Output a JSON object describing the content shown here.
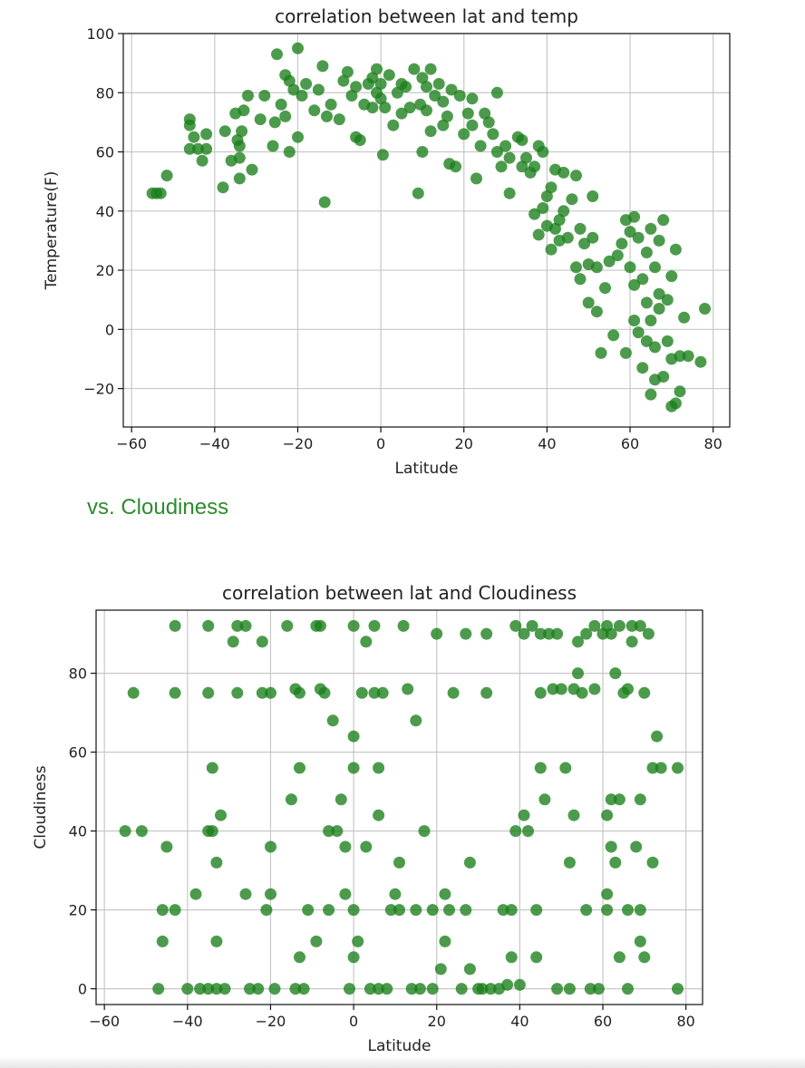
{
  "section_heading": "vs. Cloudiness",
  "colors": {
    "marker": "#1a7f1a",
    "grid": "#c8c8c8",
    "heading": "#2e8b2e"
  },
  "chart_data": [
    {
      "type": "scatter",
      "title": "correlation between lat and temp",
      "xlabel": "Latitude",
      "ylabel": "Temperature(F)",
      "xlim": [
        -62,
        84
      ],
      "ylim": [
        -33,
        100
      ],
      "xticks": [
        -60,
        -40,
        -20,
        0,
        20,
        40,
        60,
        80
      ],
      "yticks": [
        -20,
        0,
        20,
        40,
        60,
        80,
        100
      ],
      "grid": true,
      "points": [
        [
          -55,
          46
        ],
        [
          -54,
          46
        ],
        [
          -53,
          46
        ],
        [
          -51.5,
          52
        ],
        [
          -46,
          71
        ],
        [
          -46,
          69
        ],
        [
          -46,
          61
        ],
        [
          -45,
          65
        ],
        [
          -44,
          61
        ],
        [
          -43,
          57
        ],
        [
          -42,
          66
        ],
        [
          -42,
          61
        ],
        [
          -38,
          48
        ],
        [
          -37.5,
          67
        ],
        [
          -36,
          57
        ],
        [
          -35,
          73
        ],
        [
          -34.5,
          64
        ],
        [
          -34,
          51
        ],
        [
          -34,
          58
        ],
        [
          -34,
          62
        ],
        [
          -33.5,
          67
        ],
        [
          -33,
          74
        ],
        [
          -32,
          79
        ],
        [
          -31,
          54
        ],
        [
          -29,
          71
        ],
        [
          -28,
          79
        ],
        [
          -26,
          62
        ],
        [
          -25.5,
          70
        ],
        [
          -25,
          93
        ],
        [
          -24,
          76
        ],
        [
          -23,
          86
        ],
        [
          -23,
          72
        ],
        [
          -22,
          84
        ],
        [
          -22,
          60
        ],
        [
          -21,
          81
        ],
        [
          -20,
          95
        ],
        [
          -20,
          65
        ],
        [
          -19,
          79
        ],
        [
          -18,
          83
        ],
        [
          -16,
          74
        ],
        [
          -15,
          81
        ],
        [
          -14,
          89
        ],
        [
          -13.5,
          43
        ],
        [
          -13,
          72
        ],
        [
          -12,
          76
        ],
        [
          -10,
          71
        ],
        [
          -9,
          84
        ],
        [
          -8,
          87
        ],
        [
          -7,
          79
        ],
        [
          -6,
          82
        ],
        [
          -6,
          65
        ],
        [
          -5,
          64
        ],
        [
          -4,
          76
        ],
        [
          -3,
          83
        ],
        [
          -2,
          85
        ],
        [
          -2,
          75
        ],
        [
          -1,
          88
        ],
        [
          -1,
          80
        ],
        [
          0,
          83
        ],
        [
          0,
          78
        ],
        [
          0.5,
          59
        ],
        [
          1,
          75
        ],
        [
          2,
          86
        ],
        [
          3,
          69
        ],
        [
          4,
          80
        ],
        [
          5,
          83
        ],
        [
          5,
          73
        ],
        [
          6,
          82
        ],
        [
          7,
          75
        ],
        [
          8,
          88
        ],
        [
          9,
          46
        ],
        [
          9.5,
          76
        ],
        [
          10,
          60
        ],
        [
          10,
          85
        ],
        [
          11,
          82
        ],
        [
          11,
          74
        ],
        [
          12,
          67
        ],
        [
          12,
          88
        ],
        [
          13,
          79
        ],
        [
          14,
          83
        ],
        [
          15,
          69
        ],
        [
          15,
          77
        ],
        [
          16,
          72
        ],
        [
          16.5,
          56
        ],
        [
          17,
          81
        ],
        [
          18,
          55
        ],
        [
          19,
          79
        ],
        [
          20,
          66
        ],
        [
          21,
          73
        ],
        [
          22,
          78
        ],
        [
          22,
          69
        ],
        [
          23,
          51
        ],
        [
          24,
          62
        ],
        [
          25,
          73
        ],
        [
          26,
          70
        ],
        [
          27,
          66
        ],
        [
          28,
          80
        ],
        [
          28,
          60
        ],
        [
          29,
          55
        ],
        [
          30,
          62
        ],
        [
          31,
          58
        ],
        [
          31,
          46
        ],
        [
          33,
          65
        ],
        [
          34,
          64
        ],
        [
          34,
          55
        ],
        [
          35,
          58
        ],
        [
          36,
          53
        ],
        [
          37,
          55
        ],
        [
          37,
          39
        ],
        [
          38,
          62
        ],
        [
          38,
          32
        ],
        [
          39,
          41
        ],
        [
          39,
          60
        ],
        [
          40,
          45
        ],
        [
          40,
          35
        ],
        [
          41,
          27
        ],
        [
          41,
          48
        ],
        [
          42,
          34
        ],
        [
          42,
          54
        ],
        [
          43,
          37
        ],
        [
          43,
          30
        ],
        [
          44,
          53
        ],
        [
          44,
          40
        ],
        [
          45,
          31
        ],
        [
          46,
          44
        ],
        [
          47,
          52
        ],
        [
          47,
          21
        ],
        [
          48,
          34
        ],
        [
          48,
          17
        ],
        [
          49,
          29
        ],
        [
          50,
          22
        ],
        [
          50,
          9
        ],
        [
          51,
          45
        ],
        [
          51,
          31
        ],
        [
          52,
          6
        ],
        [
          52,
          21
        ],
        [
          53,
          -8
        ],
        [
          54,
          14
        ],
        [
          55,
          23
        ],
        [
          56,
          -2
        ],
        [
          57,
          25
        ],
        [
          58,
          29
        ],
        [
          59,
          -8
        ],
        [
          59,
          37
        ],
        [
          60,
          33
        ],
        [
          60,
          21
        ],
        [
          61,
          38
        ],
        [
          61,
          15
        ],
        [
          61,
          3
        ],
        [
          62,
          -1
        ],
        [
          62,
          31
        ],
        [
          63,
          -13
        ],
        [
          63,
          17
        ],
        [
          64,
          9
        ],
        [
          64,
          26
        ],
        [
          64,
          -4
        ],
        [
          65,
          -22
        ],
        [
          65,
          3
        ],
        [
          65,
          34
        ],
        [
          66,
          -17
        ],
        [
          66,
          21
        ],
        [
          66,
          -6
        ],
        [
          67,
          30
        ],
        [
          67,
          12
        ],
        [
          67,
          7
        ],
        [
          68,
          -16
        ],
        [
          68,
          37
        ],
        [
          69,
          10
        ],
        [
          69,
          -4
        ],
        [
          70,
          -26
        ],
        [
          70,
          -10
        ],
        [
          70,
          18
        ],
        [
          71,
          27
        ],
        [
          71,
          -25
        ],
        [
          72,
          -21
        ],
        [
          72,
          -9
        ],
        [
          73,
          4
        ],
        [
          74,
          -9
        ],
        [
          77,
          -11
        ],
        [
          78,
          7
        ]
      ]
    },
    {
      "type": "scatter",
      "title": "correlation between lat and Cloudiness",
      "xlabel": "Latitude",
      "ylabel": "Cloudiness",
      "xlim": [
        -62,
        84
      ],
      "ylim": [
        -4,
        96
      ],
      "xticks": [
        -60,
        -40,
        -20,
        0,
        20,
        40,
        60,
        80
      ],
      "yticks": [
        0,
        20,
        40,
        60,
        80
      ],
      "grid": true,
      "points": [
        [
          -55,
          40
        ],
        [
          -53,
          75
        ],
        [
          -51,
          40
        ],
        [
          -47,
          0
        ],
        [
          -46,
          20
        ],
        [
          -46,
          12
        ],
        [
          -45,
          36
        ],
        [
          -43,
          20
        ],
        [
          -43,
          92
        ],
        [
          -43,
          75
        ],
        [
          -40,
          0
        ],
        [
          -38,
          24
        ],
        [
          -37,
          0
        ],
        [
          -35,
          0
        ],
        [
          -35,
          40
        ],
        [
          -35,
          75
        ],
        [
          -35,
          92
        ],
        [
          -34,
          56
        ],
        [
          -34,
          40
        ],
        [
          -33,
          32
        ],
        [
          -33,
          12
        ],
        [
          -33,
          0
        ],
        [
          -32,
          44
        ],
        [
          -31,
          0
        ],
        [
          -29,
          88
        ],
        [
          -28,
          75
        ],
        [
          -28,
          92
        ],
        [
          -26,
          92
        ],
        [
          -26,
          24
        ],
        [
          -25,
          0
        ],
        [
          -23,
          0
        ],
        [
          -22,
          88
        ],
        [
          -22,
          75
        ],
        [
          -21,
          20
        ],
        [
          -20,
          24
        ],
        [
          -20,
          75
        ],
        [
          -20,
          36
        ],
        [
          -19,
          0
        ],
        [
          -16,
          92
        ],
        [
          -15,
          48
        ],
        [
          -14,
          0
        ],
        [
          -14,
          76
        ],
        [
          -13,
          75
        ],
        [
          -13,
          56
        ],
        [
          -13,
          8
        ],
        [
          -12,
          0
        ],
        [
          -11,
          20
        ],
        [
          -9,
          12
        ],
        [
          -9,
          92
        ],
        [
          -8,
          76
        ],
        [
          -8,
          92
        ],
        [
          -7,
          75
        ],
        [
          -6,
          20
        ],
        [
          -6,
          40
        ],
        [
          -5,
          68
        ],
        [
          -4,
          40
        ],
        [
          -3,
          48
        ],
        [
          -2,
          36
        ],
        [
          -2,
          24
        ],
        [
          -1,
          0
        ],
        [
          0,
          92
        ],
        [
          0,
          64
        ],
        [
          0,
          56
        ],
        [
          0,
          8
        ],
        [
          0,
          20
        ],
        [
          1,
          12
        ],
        [
          2,
          75
        ],
        [
          3,
          36
        ],
        [
          3,
          88
        ],
        [
          4,
          0
        ],
        [
          5,
          92
        ],
        [
          5,
          75
        ],
        [
          6,
          0
        ],
        [
          6,
          56
        ],
        [
          6,
          44
        ],
        [
          7,
          75
        ],
        [
          8,
          0
        ],
        [
          9,
          20
        ],
        [
          10,
          24
        ],
        [
          11,
          20
        ],
        [
          11,
          32
        ],
        [
          12,
          92
        ],
        [
          13,
          76
        ],
        [
          14,
          0
        ],
        [
          15,
          68
        ],
        [
          15,
          20
        ],
        [
          16,
          0
        ],
        [
          17,
          40
        ],
        [
          19,
          0
        ],
        [
          19,
          20
        ],
        [
          20,
          90
        ],
        [
          21,
          5
        ],
        [
          22,
          12
        ],
        [
          22,
          24
        ],
        [
          23,
          20
        ],
        [
          24,
          75
        ],
        [
          26,
          0
        ],
        [
          27,
          90
        ],
        [
          27,
          20
        ],
        [
          28,
          32
        ],
        [
          28,
          5
        ],
        [
          30,
          0
        ],
        [
          31,
          0
        ],
        [
          32,
          90
        ],
        [
          32,
          75
        ],
        [
          33,
          0
        ],
        [
          35,
          0
        ],
        [
          36,
          20
        ],
        [
          37,
          1
        ],
        [
          38,
          8
        ],
        [
          38,
          20
        ],
        [
          39,
          92
        ],
        [
          39,
          40
        ],
        [
          40,
          1
        ],
        [
          41,
          90
        ],
        [
          41,
          44
        ],
        [
          42,
          40
        ],
        [
          43,
          92
        ],
        [
          44,
          8
        ],
        [
          44,
          20
        ],
        [
          45,
          90
        ],
        [
          45,
          56
        ],
        [
          45,
          75
        ],
        [
          46,
          48
        ],
        [
          47,
          90
        ],
        [
          48,
          76
        ],
        [
          49,
          90
        ],
        [
          49,
          0
        ],
        [
          50,
          76
        ],
        [
          51,
          56
        ],
        [
          52,
          32
        ],
        [
          52,
          0
        ],
        [
          53,
          44
        ],
        [
          53,
          76
        ],
        [
          54,
          88
        ],
        [
          54,
          80
        ],
        [
          55,
          75
        ],
        [
          56,
          90
        ],
        [
          56,
          20
        ],
        [
          57,
          0
        ],
        [
          58,
          92
        ],
        [
          58,
          76
        ],
        [
          59,
          0
        ],
        [
          60,
          90
        ],
        [
          61,
          92
        ],
        [
          61,
          44
        ],
        [
          61,
          20
        ],
        [
          61,
          24
        ],
        [
          62,
          36
        ],
        [
          62,
          48
        ],
        [
          62,
          90
        ],
        [
          63,
          32
        ],
        [
          63,
          80
        ],
        [
          64,
          48
        ],
        [
          64,
          8
        ],
        [
          64,
          92
        ],
        [
          65,
          75
        ],
        [
          66,
          0
        ],
        [
          66,
          20
        ],
        [
          66,
          76
        ],
        [
          67,
          88
        ],
        [
          67,
          92
        ],
        [
          68,
          36
        ],
        [
          69,
          20
        ],
        [
          69,
          92
        ],
        [
          69,
          48
        ],
        [
          69,
          12
        ],
        [
          70,
          8
        ],
        [
          70,
          75
        ],
        [
          71,
          90
        ],
        [
          72,
          32
        ],
        [
          72,
          56
        ],
        [
          73,
          64
        ],
        [
          74,
          56
        ],
        [
          78,
          56
        ],
        [
          78,
          0
        ]
      ]
    }
  ]
}
